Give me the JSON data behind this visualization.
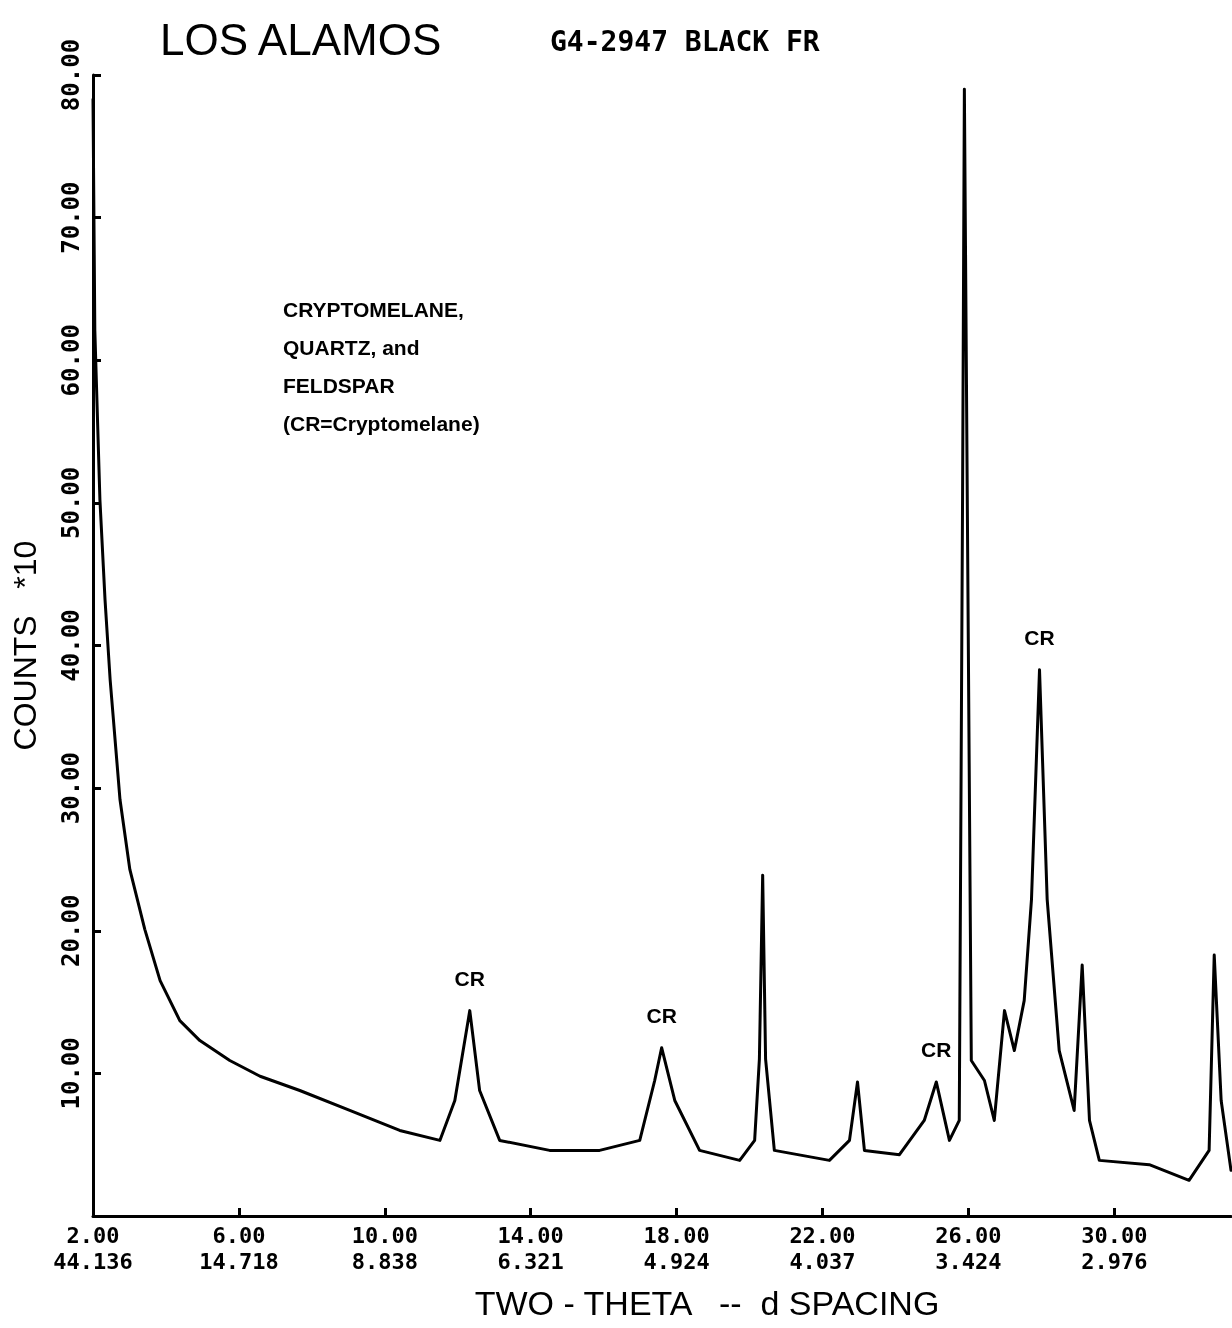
{
  "chart_data": {
    "type": "line",
    "title": "LOS ALAMOS",
    "subtitle": "G4-2947 BLACK FR",
    "xlabel": "TWO - THETA   --  d SPACING",
    "ylabel": "COUNTS   *10",
    "x": [
      2.0,
      2.05,
      2.19,
      2.33,
      2.47,
      2.74,
      3.01,
      3.42,
      3.84,
      4.38,
      4.93,
      5.75,
      6.58,
      7.67,
      9.04,
      10.41,
      11.51,
      11.92,
      12.33,
      12.6,
      13.15,
      14.52,
      15.89,
      16.99,
      17.4,
      17.59,
      17.95,
      18.63,
      19.73,
      20.14,
      20.27,
      20.36,
      20.44,
      20.68,
      22.19,
      22.74,
      22.96,
      23.15,
      24.11,
      24.79,
      25.12,
      25.48,
      25.75,
      25.84,
      25.89,
      25.97,
      26.08,
      26.44,
      26.71,
      26.99,
      27.26,
      27.53,
      27.73,
      27.95,
      28.16,
      28.49,
      28.9,
      29.12,
      29.32,
      29.59,
      30.96,
      32.05,
      32.6,
      32.74,
      32.93,
      33.2
    ],
    "series": [
      {
        "color": "#000000",
        "values": [
          78.3,
          62.1,
          50.2,
          43.2,
          37.6,
          29.2,
          24.3,
          20.1,
          16.5,
          13.7,
          12.3,
          10.9,
          9.8,
          8.8,
          7.4,
          6.0,
          5.3,
          8.1,
          14.4,
          8.8,
          5.3,
          4.6,
          4.6,
          5.3,
          9.5,
          11.8,
          8.1,
          4.6,
          3.9,
          5.3,
          11.0,
          23.9,
          11.0,
          4.6,
          3.9,
          5.3,
          9.4,
          4.6,
          4.3,
          6.7,
          9.4,
          5.3,
          6.7,
          50.2,
          79.0,
          50.2,
          10.9,
          9.5,
          6.7,
          14.4,
          11.6,
          15.1,
          22.2,
          38.3,
          22.2,
          11.6,
          7.4,
          17.6,
          6.7,
          3.9,
          3.6,
          2.5,
          4.6,
          18.3,
          8.1,
          3.2
        ]
      }
    ],
    "xlim": [
      2,
      33.2
    ],
    "ylim": [
      0,
      80
    ],
    "xticks": [
      {
        "value": 2,
        "label": "2.00"
      },
      {
        "value": 6,
        "label": "6.00"
      },
      {
        "value": 10,
        "label": "10.00"
      },
      {
        "value": 14,
        "label": "14.00"
      },
      {
        "value": 18,
        "label": "18.00"
      },
      {
        "value": 22,
        "label": "22.00"
      },
      {
        "value": 26,
        "label": "26.00"
      },
      {
        "value": 30,
        "label": "30.00"
      }
    ],
    "yticks": [
      {
        "value": 10,
        "label": "10.00"
      },
      {
        "value": 20,
        "label": "20.00"
      },
      {
        "value": 30,
        "label": "30.00"
      },
      {
        "value": 40,
        "label": "40.00"
      },
      {
        "value": 50,
        "label": "50.00"
      },
      {
        "value": 60,
        "label": "60.00"
      },
      {
        "value": 70,
        "label": "70.00"
      },
      {
        "value": 80,
        "label": "80.00"
      }
    ],
    "annotations": [
      "CRYPTOMELANE,\nQUARTZ, and\nFELDSPAR\n(CR=Cryptomelane)",
      {
        "text": "CR",
        "x": 12.33,
        "y": 14.4
      },
      {
        "text": "CR",
        "x": 17.59,
        "y": 11.8
      },
      {
        "text": "CR",
        "x": 25.12,
        "y": 9.4
      },
      {
        "text": "CR",
        "x": 27.95,
        "y": 38.3
      },
      "44.136",
      "14.718",
      "8.838",
      "6.321",
      "4.924",
      "4.037",
      "3.424",
      "2.976"
    ],
    "grid": false,
    "marker": "none",
    "line_style": "solid"
  }
}
